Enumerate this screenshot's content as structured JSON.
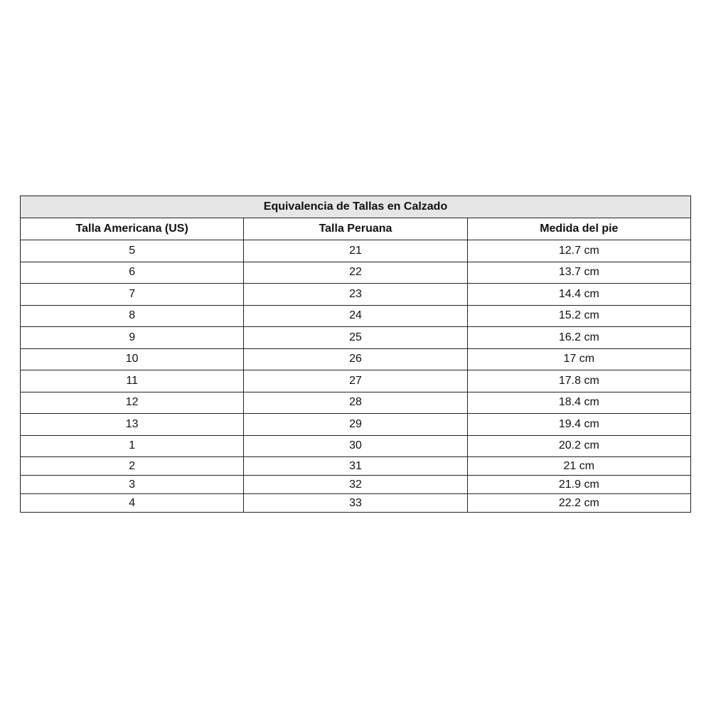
{
  "table": {
    "title": "Equivalencia de Tallas en Calzado",
    "headers": [
      "Talla Americana (US)",
      "Talla Peruana",
      "Medida del pie"
    ],
    "rows": [
      [
        "5",
        "21",
        "12.7 cm"
      ],
      [
        "6",
        "22",
        "13.7 cm"
      ],
      [
        "7",
        "23",
        "14.4 cm"
      ],
      [
        "8",
        "24",
        "15.2 cm"
      ],
      [
        "9",
        "25",
        "16.2 cm"
      ],
      [
        "10",
        "26",
        "17 cm"
      ],
      [
        "11",
        "27",
        "17.8 cm"
      ],
      [
        "12",
        "28",
        "18.4 cm"
      ],
      [
        "13",
        "29",
        "19.4 cm"
      ],
      [
        "1",
        "30",
        "20.2 cm"
      ],
      [
        "2",
        "31",
        "21 cm"
      ],
      [
        "3",
        "32",
        "21.9 cm"
      ],
      [
        "4",
        "33",
        "22.2 cm"
      ]
    ],
    "title_background": "#e6e6e6"
  }
}
